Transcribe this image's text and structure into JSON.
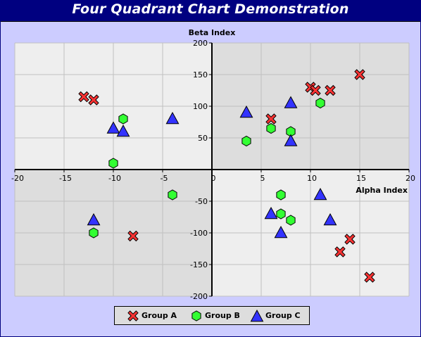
{
  "chart_data": {
    "type": "scatter",
    "title": "Four Quadrant Chart Demonstration",
    "xlabel": "Alpha Index",
    "ylabel": "Beta Index",
    "xlim": [
      -20,
      20
    ],
    "ylim": [
      -200,
      200
    ],
    "x_ticks": [
      -20,
      -15,
      -10,
      -5,
      0,
      5,
      10,
      15,
      20
    ],
    "y_ticks": [
      -200,
      -150,
      -100,
      -50,
      0,
      50,
      100,
      150,
      200
    ],
    "grid": true,
    "legend_position": "bottom",
    "quadrant_colors": {
      "light": "#eeeeee",
      "dark": "#dddddd"
    },
    "series": [
      {
        "name": "Group A",
        "marker": "cross",
        "color": "#ff3333",
        "points": [
          [
            -13,
            115
          ],
          [
            -12,
            110
          ],
          [
            -8,
            -105
          ],
          [
            6,
            80
          ],
          [
            10,
            130
          ],
          [
            10.5,
            125
          ],
          [
            12,
            125
          ],
          [
            15,
            150
          ],
          [
            13,
            -130
          ],
          [
            14,
            -110
          ],
          [
            16,
            -170
          ]
        ]
      },
      {
        "name": "Group B",
        "marker": "hexagon",
        "color": "#33ff33",
        "points": [
          [
            -9,
            80
          ],
          [
            -10,
            10
          ],
          [
            -4,
            -40
          ],
          [
            -12,
            -100
          ],
          [
            3.5,
            45
          ],
          [
            6,
            65
          ],
          [
            8,
            60
          ],
          [
            11,
            105
          ],
          [
            7,
            -40
          ],
          [
            7,
            -70
          ],
          [
            8,
            -80
          ]
        ]
      },
      {
        "name": "Group C",
        "marker": "triangle",
        "color": "#3333ff",
        "points": [
          [
            -10,
            65
          ],
          [
            -9,
            60
          ],
          [
            -4,
            80
          ],
          [
            -12,
            -80
          ],
          [
            3.5,
            90
          ],
          [
            8,
            105
          ],
          [
            8,
            45
          ],
          [
            6,
            -70
          ],
          [
            7,
            -100
          ],
          [
            11,
            -40
          ],
          [
            12,
            -80
          ]
        ]
      }
    ]
  }
}
